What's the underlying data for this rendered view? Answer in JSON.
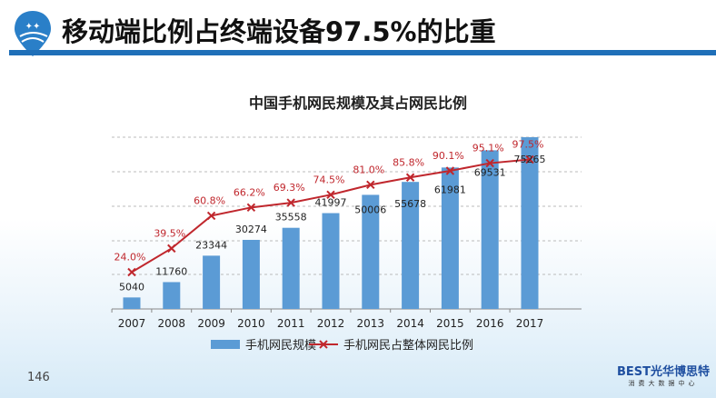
{
  "header": {
    "title": "移动端比例占终端设备97.5%的比重",
    "accent": "#1f6fb8"
  },
  "page_number": "146",
  "brand": {
    "name": "BEST光华博思特",
    "subtitle": "消费大数据中心"
  },
  "chart_data": {
    "type": "bar+line",
    "title": "中国手机网民规模及其占网民比例",
    "categories": [
      "2007",
      "2008",
      "2009",
      "2010",
      "2011",
      "2012",
      "2013",
      "2014",
      "2015",
      "2016",
      "2017"
    ],
    "series": [
      {
        "name": "手机网民规模",
        "type": "bar",
        "color": "#5b9bd5",
        "values": [
          5040,
          11760,
          23344,
          30274,
          35558,
          41997,
          50006,
          55678,
          61981,
          69531,
          75265
        ]
      },
      {
        "name": "手机网民占整体网民比例",
        "type": "line",
        "color": "#c0272d",
        "unit": "%",
        "values": [
          24.0,
          39.5,
          60.8,
          66.2,
          69.3,
          74.5,
          81.0,
          85.8,
          90.1,
          95.1,
          97.5
        ]
      }
    ],
    "grid": true,
    "legend": "bottom"
  }
}
